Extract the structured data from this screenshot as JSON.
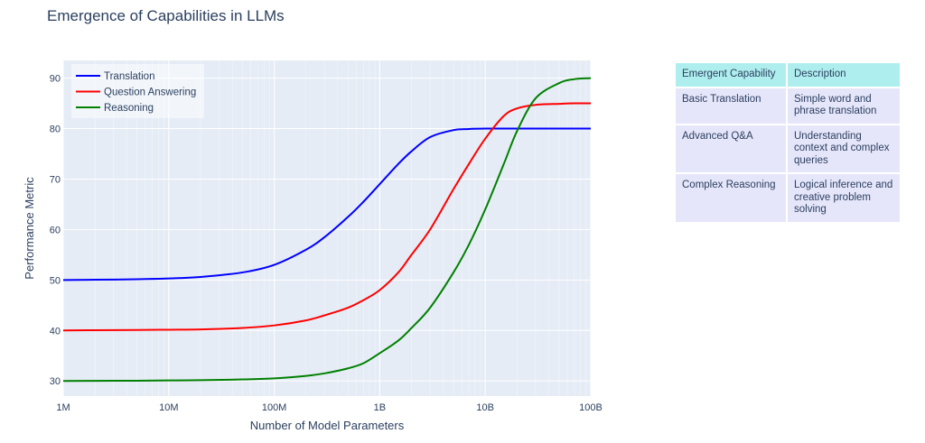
{
  "chart_data": {
    "type": "line",
    "title": "Emergence of Capabilities in LLMs",
    "xlabel": "Number of Model Parameters",
    "ylabel": "Performance Metric",
    "x_scale": "log",
    "xlim": [
      1000000,
      100000000000
    ],
    "ylim": [
      27,
      93.5
    ],
    "x_ticks": [
      1000000,
      10000000,
      100000000,
      1000000000,
      10000000000,
      100000000000
    ],
    "x_tick_labels": [
      "1M",
      "10M",
      "100M",
      "1B",
      "10B",
      "100B"
    ],
    "y_ticks": [
      30,
      40,
      50,
      60,
      70,
      80,
      90
    ],
    "y_tick_labels": [
      "30",
      "40",
      "50",
      "60",
      "70",
      "80",
      "90"
    ],
    "grid": true,
    "legend_position": "top-left",
    "x": [
      1000000,
      2000000,
      5000000,
      10000000,
      20000000,
      50000000,
      100000000,
      200000000,
      300000000,
      500000000,
      700000000,
      1000000000,
      1500000000,
      2000000000,
      3000000000,
      5000000000,
      7000000000,
      10000000000,
      15000000000,
      20000000000,
      30000000000,
      50000000000,
      70000000000,
      100000000000
    ],
    "series": [
      {
        "name": "Translation",
        "color": "#0000ff",
        "values": [
          50.0,
          50.05,
          50.15,
          50.3,
          50.6,
          51.5,
          53.0,
          56.0,
          58.5,
          62.5,
          65.5,
          69.0,
          73.0,
          75.5,
          78.3,
          79.7,
          79.92,
          80.0,
          80.0,
          80.0,
          80.0,
          80.0,
          80.0,
          80.0
        ]
      },
      {
        "name": "Question Answering",
        "color": "#ff0000",
        "values": [
          40.0,
          40.05,
          40.1,
          40.15,
          40.2,
          40.5,
          41.0,
          42.0,
          43.0,
          44.5,
          46.0,
          48.0,
          51.5,
          55.0,
          60.0,
          68.0,
          73.0,
          78.0,
          82.5,
          84.0,
          84.7,
          84.9,
          85.0,
          85.0
        ]
      },
      {
        "name": "Reasoning",
        "color": "#008000",
        "values": [
          30.0,
          30.02,
          30.05,
          30.1,
          30.15,
          30.3,
          30.5,
          31.0,
          31.5,
          32.5,
          33.5,
          35.5,
          38.0,
          40.5,
          44.5,
          51.5,
          57.0,
          64.0,
          73.0,
          79.5,
          86.0,
          89.0,
          89.8,
          90.0
        ]
      }
    ]
  },
  "table": {
    "header_color": "#afeeee",
    "cell_color": "#e6e6fa",
    "headers": [
      "Emergent Capability",
      "Description"
    ],
    "rows": [
      [
        "Basic Translation",
        "Simple word and phrase translation"
      ],
      [
        "Advanced Q&A",
        "Understanding context and complex queries"
      ],
      [
        "Complex Reasoning",
        "Logical inference and creative problem solving"
      ]
    ]
  }
}
